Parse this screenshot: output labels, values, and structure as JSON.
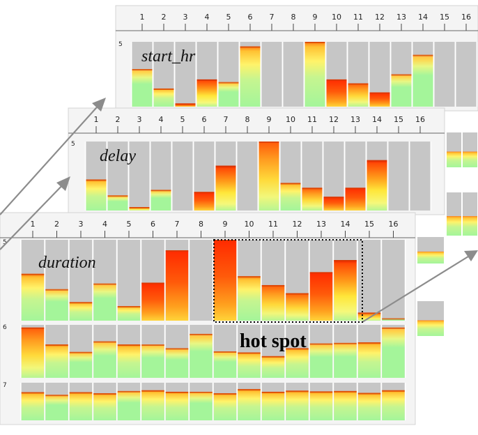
{
  "panels": [
    {
      "id": "start_hr",
      "title": "start_hr",
      "ticks": [
        "1",
        "2",
        "3",
        "4",
        "5",
        "6",
        "7",
        "8",
        "9",
        "10",
        "11",
        "12",
        "13",
        "14",
        "15",
        "16"
      ],
      "rows": [
        {
          "label": "5",
          "values": [
            0.58,
            0.28,
            0.05,
            0.42,
            0.38,
            0.93,
            0.0,
            0.0,
            1.0,
            0.42,
            0.36,
            0.22,
            0.5,
            0.8,
            0.0,
            0.0
          ],
          "heat": [
            0.1,
            0.5,
            0.9,
            1.0,
            0.1,
            0.4,
            0.0,
            0.0,
            0.35,
            0.8,
            0.65,
            0.9,
            0.0,
            0.0,
            0.0,
            0.0
          ]
        }
      ]
    },
    {
      "id": "delay",
      "title": "delay",
      "ticks": [
        "1",
        "2",
        "3",
        "4",
        "5",
        "6",
        "7",
        "8",
        "9",
        "10",
        "11",
        "12",
        "13",
        "14",
        "15",
        "16"
      ],
      "rows": [
        {
          "label": "5",
          "values": [
            0.45,
            0.22,
            0.05,
            0.3,
            0.0,
            0.27,
            0.65,
            0.0,
            1.0,
            0.4,
            0.33,
            0.2,
            0.33,
            0.73,
            0.0,
            0.0
          ],
          "heat": [
            0.3,
            0.2,
            0.7,
            0.0,
            0.0,
            0.9,
            1.0,
            0.0,
            0.7,
            0.45,
            0.75,
            0.8,
            0.85,
            1.0,
            0.0,
            0.0
          ]
        }
      ]
    },
    {
      "id": "duration",
      "title": "duration",
      "ticks": [
        "1",
        "2",
        "3",
        "4",
        "5",
        "6",
        "7",
        "8",
        "9",
        "10",
        "11",
        "12",
        "13",
        "14",
        "15",
        "16"
      ],
      "rows": [
        {
          "label": "5",
          "values": [
            0.58,
            0.39,
            0.23,
            0.46,
            0.18,
            0.47,
            0.87,
            0.0,
            1.0,
            0.55,
            0.44,
            0.34,
            0.6,
            0.75,
            0.1,
            0.03
          ],
          "heat": [
            0.3,
            0.0,
            0.35,
            0.0,
            0.5,
            0.85,
            0.9,
            0.0,
            0.8,
            0.4,
            0.7,
            0.55,
            0.9,
            1.0,
            0.7,
            0.0
          ]
        },
        {
          "label": "6",
          "values": [
            0.95,
            0.63,
            0.49,
            0.69,
            0.63,
            0.63,
            0.56,
            0.83,
            0.5,
            0.48,
            0.41,
            0.56,
            0.65,
            0.66,
            0.67,
            0.95
          ],
          "heat": [
            0.55,
            0.4,
            0.2,
            0.1,
            0.3,
            0.25,
            0.25,
            0.0,
            0.25,
            0.5,
            0.4,
            0.3,
            0.25,
            0.25,
            0.3,
            0.2
          ]
        },
        {
          "label": "7",
          "values": [
            0.75,
            0.68,
            0.75,
            0.72,
            0.78,
            0.8,
            0.76,
            0.76,
            0.72,
            0.83,
            0.76,
            0.79,
            0.77,
            0.78,
            0.73,
            0.8
          ],
          "heat": [
            0.3,
            0.25,
            0.3,
            0.35,
            0.25,
            0.35,
            0.3,
            0.25,
            0.3,
            0.3,
            0.3,
            0.3,
            0.35,
            0.3,
            0.3,
            0.3
          ]
        }
      ]
    }
  ],
  "annotation": {
    "label": "hot spot",
    "from_column": "9",
    "to_column": "14"
  },
  "colors": {
    "track": "#c6c6c6",
    "base_green": "#a4f59a",
    "hot_red": "#ff2a00",
    "arrow": "#8c8c8c",
    "column_separator": "#ffffff"
  }
}
